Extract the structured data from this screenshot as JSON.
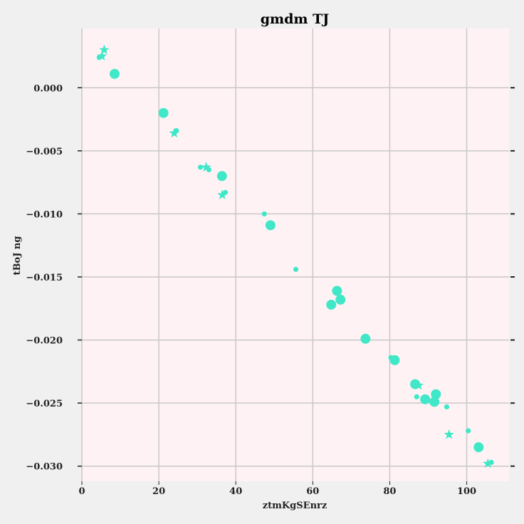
{
  "chart_data": {
    "type": "scatter",
    "title": "gmdm TJ",
    "xlabel": "ztmKgSEnrz",
    "ylabel": "tBoJ ng",
    "xlim": [
      0,
      111
    ],
    "ylim": [
      -0.0312,
      0.0047
    ],
    "xticks": [
      0,
      20,
      40,
      60,
      80,
      100
    ],
    "yticks": [
      0.0,
      -0.005,
      -0.01,
      -0.015,
      -0.02,
      -0.025,
      -0.03
    ],
    "ytick_labels": [
      "0.000",
      "−0.005",
      "−0.010",
      "−0.015",
      "−0.020",
      "−0.025",
      "−0.030"
    ],
    "grid": true,
    "colors": {
      "marker": "#40e8c8",
      "plot_bg": "#fff2f5",
      "grid": "#c8c8c8",
      "page_bg": "#f0f0f0"
    },
    "points": [
      {
        "x": 4.5,
        "y": 0.0024,
        "marker": "circle",
        "size": "small"
      },
      {
        "x": 5.2,
        "y": 0.0025,
        "marker": "star",
        "size": "small"
      },
      {
        "x": 5.8,
        "y": 0.003,
        "marker": "star",
        "size": "small"
      },
      {
        "x": 8.5,
        "y": 0.0011,
        "marker": "circle",
        "size": "large"
      },
      {
        "x": 21.2,
        "y": -0.002,
        "marker": "circle",
        "size": "large"
      },
      {
        "x": 24.0,
        "y": -0.0036,
        "marker": "star",
        "size": "small"
      },
      {
        "x": 24.6,
        "y": -0.0034,
        "marker": "circle",
        "size": "small"
      },
      {
        "x": 30.8,
        "y": -0.0063,
        "marker": "circle",
        "size": "small"
      },
      {
        "x": 32.3,
        "y": -0.0063,
        "marker": "star",
        "size": "small"
      },
      {
        "x": 33.0,
        "y": -0.0065,
        "marker": "circle",
        "size": "small"
      },
      {
        "x": 36.4,
        "y": -0.007,
        "marker": "circle",
        "size": "large"
      },
      {
        "x": 36.5,
        "y": -0.0085,
        "marker": "star",
        "size": "small"
      },
      {
        "x": 37.3,
        "y": -0.0083,
        "marker": "circle",
        "size": "small"
      },
      {
        "x": 47.4,
        "y": -0.01,
        "marker": "circle",
        "size": "small"
      },
      {
        "x": 49.0,
        "y": -0.0109,
        "marker": "circle",
        "size": "large"
      },
      {
        "x": 55.6,
        "y": -0.0144,
        "marker": "circle",
        "size": "small"
      },
      {
        "x": 64.8,
        "y": -0.0172,
        "marker": "circle",
        "size": "large"
      },
      {
        "x": 66.3,
        "y": -0.0161,
        "marker": "circle",
        "size": "large"
      },
      {
        "x": 67.2,
        "y": -0.0168,
        "marker": "circle",
        "size": "large"
      },
      {
        "x": 73.7,
        "y": -0.0199,
        "marker": "circle",
        "size": "large"
      },
      {
        "x": 80.3,
        "y": -0.0214,
        "marker": "circle",
        "size": "small"
      },
      {
        "x": 81.3,
        "y": -0.0216,
        "marker": "circle",
        "size": "large"
      },
      {
        "x": 86.6,
        "y": -0.0235,
        "marker": "circle",
        "size": "large"
      },
      {
        "x": 87.5,
        "y": -0.0236,
        "marker": "star",
        "size": "small"
      },
      {
        "x": 87.0,
        "y": -0.0245,
        "marker": "circle",
        "size": "small"
      },
      {
        "x": 89.2,
        "y": -0.0247,
        "marker": "circle",
        "size": "large"
      },
      {
        "x": 91.6,
        "y": -0.0249,
        "marker": "circle",
        "size": "large"
      },
      {
        "x": 92.0,
        "y": -0.0243,
        "marker": "circle",
        "size": "large"
      },
      {
        "x": 94.8,
        "y": -0.0253,
        "marker": "circle",
        "size": "small"
      },
      {
        "x": 95.4,
        "y": -0.0275,
        "marker": "star",
        "size": "small"
      },
      {
        "x": 100.4,
        "y": -0.0272,
        "marker": "circle",
        "size": "small"
      },
      {
        "x": 103.1,
        "y": -0.0285,
        "marker": "circle",
        "size": "large"
      },
      {
        "x": 105.5,
        "y": -0.0298,
        "marker": "star",
        "size": "small"
      },
      {
        "x": 106.4,
        "y": -0.0297,
        "marker": "circle",
        "size": "small"
      }
    ]
  }
}
